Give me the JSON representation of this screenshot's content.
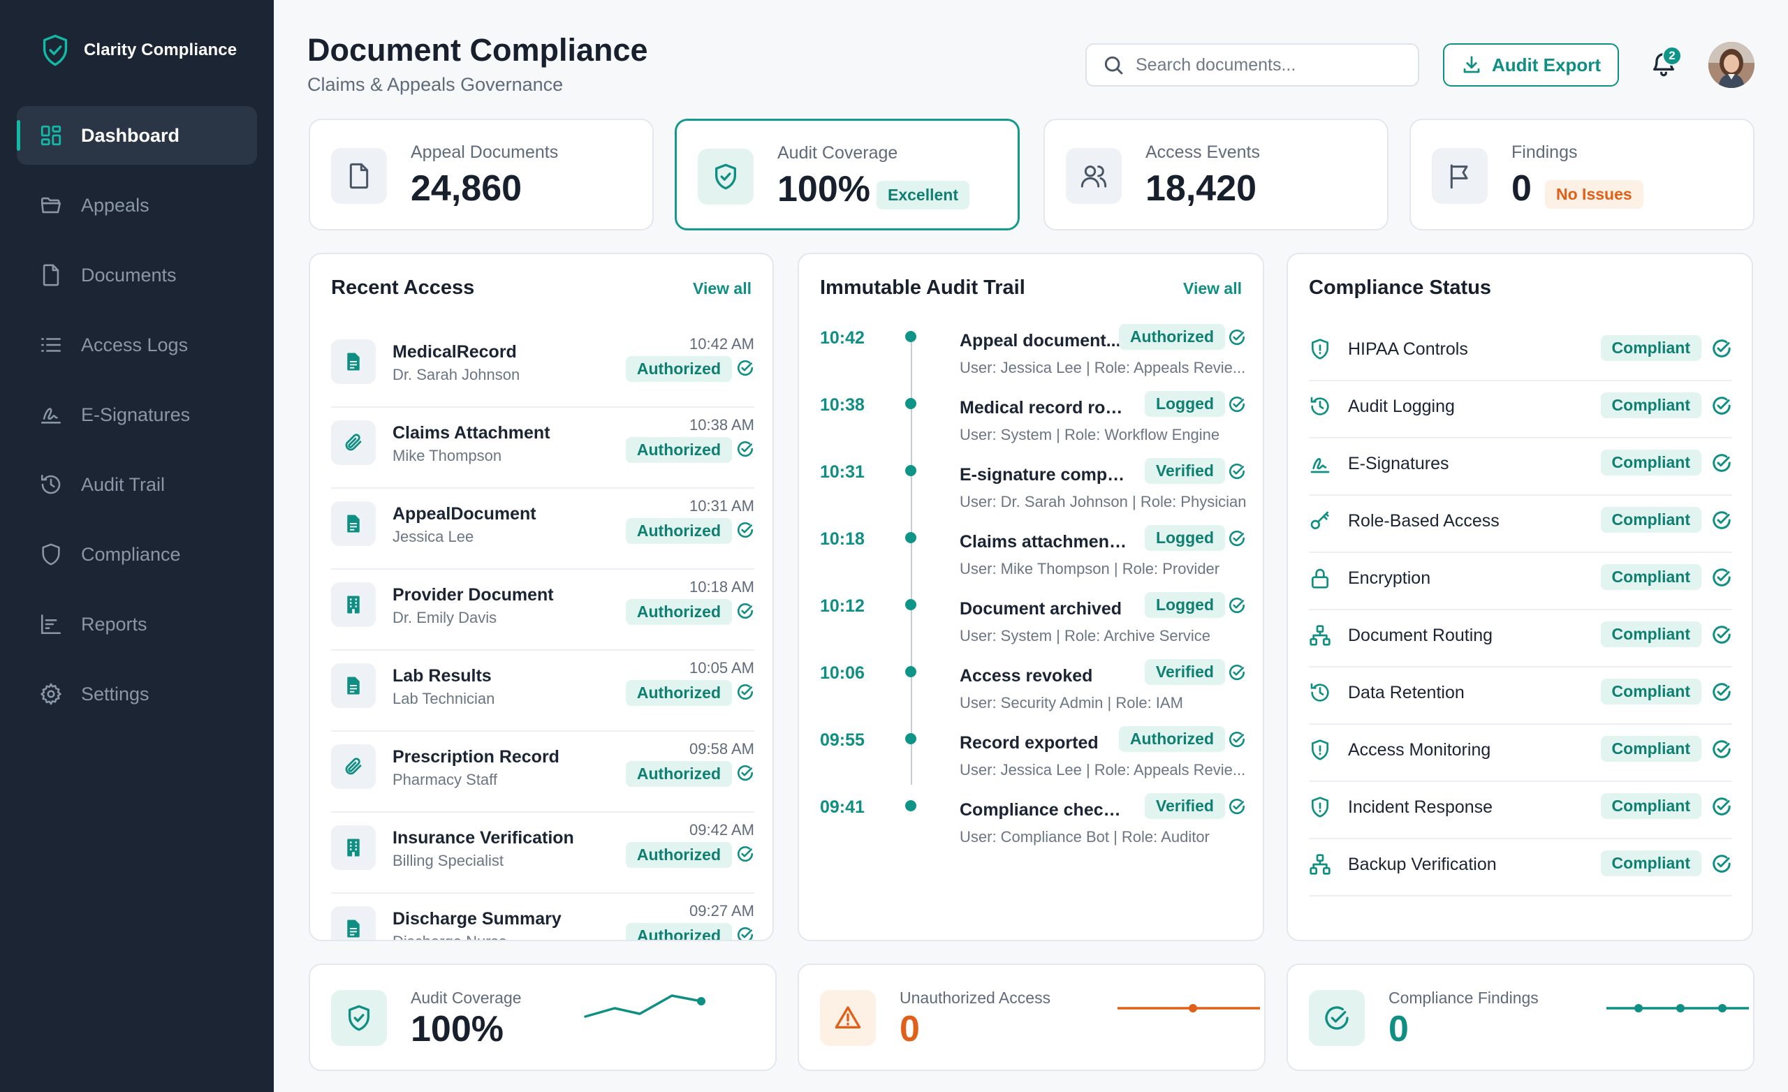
{
  "brand": {
    "name": "Clarity Compliance"
  },
  "sidebar": {
    "items": [
      {
        "label": "Dashboard",
        "icon": "grid-icon",
        "active": true
      },
      {
        "label": "Appeals",
        "icon": "folder-icon"
      },
      {
        "label": "Documents",
        "icon": "document-icon"
      },
      {
        "label": "Access Logs",
        "icon": "list-icon"
      },
      {
        "label": "E-Signatures",
        "icon": "signature-icon"
      },
      {
        "label": "Audit Trail",
        "icon": "history-icon"
      },
      {
        "label": "Compliance",
        "icon": "shield-icon"
      },
      {
        "label": "Reports",
        "icon": "chart-icon"
      },
      {
        "label": "Settings",
        "icon": "gear-icon"
      }
    ]
  },
  "header": {
    "title": "Document Compliance",
    "subtitle": "Claims & Appeals Governance",
    "search_placeholder": "Search documents...",
    "export_label": "Audit Export",
    "notification_count": "2"
  },
  "stats": [
    {
      "label": "Appeal Documents",
      "value": "24,860",
      "badge": "",
      "icon": "document-icon"
    },
    {
      "label": "Audit Coverage",
      "value": "100%",
      "badge": "Excellent",
      "icon": "shield-check-icon"
    },
    {
      "label": "Access Events",
      "value": "18,420",
      "badge": "",
      "icon": "users-icon"
    },
    {
      "label": "Findings",
      "value": "0",
      "badge": "No Issues",
      "icon": "flag-icon"
    }
  ],
  "recent_access": {
    "title": "Recent Access",
    "view_all": "View all",
    "rows": [
      {
        "name": "MedicalRecord",
        "user": "Dr. Sarah Johnson",
        "time": "10:42 AM",
        "status": "Authorized",
        "icon": "file-text-icon"
      },
      {
        "name": "Claims Attachment",
        "user": "Mike Thompson",
        "time": "10:38 AM",
        "status": "Authorized",
        "icon": "paperclip-icon"
      },
      {
        "name": "AppealDocument",
        "user": "Jessica Lee",
        "time": "10:31 AM",
        "status": "Authorized",
        "icon": "file-text-icon"
      },
      {
        "name": "Provider Document",
        "user": "Dr. Emily Davis",
        "time": "10:18 AM",
        "status": "Authorized",
        "icon": "building-icon"
      },
      {
        "name": "Lab Results",
        "user": "Lab Technician",
        "time": "10:05 AM",
        "status": "Authorized",
        "icon": "file-text-icon"
      },
      {
        "name": "Prescription Record",
        "user": "Pharmacy Staff",
        "time": "09:58 AM",
        "status": "Authorized",
        "icon": "paperclip-icon"
      },
      {
        "name": "Insurance Verification",
        "user": "Billing Specialist",
        "time": "09:42 AM",
        "status": "Authorized",
        "icon": "building-icon"
      },
      {
        "name": "Discharge Summary",
        "user": "Discharge Nurse",
        "time": "09:27 AM",
        "status": "Authorized",
        "icon": "file-text-icon"
      }
    ]
  },
  "audit_trail": {
    "title": "Immutable Audit Trail",
    "view_all": "View all",
    "items": [
      {
        "time": "10:42",
        "event": "Appeal document...",
        "status": "Authorized",
        "detail": "User: Jessica Lee | Role: Appeals Revie..."
      },
      {
        "time": "10:38",
        "event": "Medical record routed",
        "status": "Logged",
        "detail": "User: System | Role: Workflow Engine"
      },
      {
        "time": "10:31",
        "event": "E-signature completed",
        "status": "Verified",
        "detail": "User: Dr. Sarah Johnson | Role: Physician"
      },
      {
        "time": "10:18",
        "event": "Claims attachment up...",
        "status": "Logged",
        "detail": "User: Mike Thompson | Role: Provider"
      },
      {
        "time": "10:12",
        "event": "Document archived",
        "status": "Logged",
        "detail": "User: System | Role: Archive Service"
      },
      {
        "time": "10:06",
        "event": "Access revoked",
        "status": "Verified",
        "detail": "User: Security Admin | Role: IAM"
      },
      {
        "time": "09:55",
        "event": "Record exported",
        "status": "Authorized",
        "detail": "User: Jessica Lee | Role: Appeals Revie..."
      },
      {
        "time": "09:41",
        "event": "Compliance check pa...",
        "status": "Verified",
        "detail": "User: Compliance Bot | Role: Auditor"
      }
    ]
  },
  "compliance_status": {
    "title": "Compliance Status",
    "rows": [
      {
        "name": "HIPAA Controls",
        "status": "Compliant",
        "icon": "shield-alert-icon"
      },
      {
        "name": "Audit Logging",
        "status": "Compliant",
        "icon": "history-icon"
      },
      {
        "name": "E-Signatures",
        "status": "Compliant",
        "icon": "signature-icon"
      },
      {
        "name": "Role-Based Access",
        "status": "Compliant",
        "icon": "key-icon"
      },
      {
        "name": "Encryption",
        "status": "Compliant",
        "icon": "lock-icon"
      },
      {
        "name": "Document Routing",
        "status": "Compliant",
        "icon": "network-icon"
      },
      {
        "name": "Data Retention",
        "status": "Compliant",
        "icon": "history-icon"
      },
      {
        "name": "Access Monitoring",
        "status": "Compliant",
        "icon": "shield-alert-icon"
      },
      {
        "name": "Incident Response",
        "status": "Compliant",
        "icon": "shield-alert-icon"
      },
      {
        "name": "Backup Verification",
        "status": "Compliant",
        "icon": "network-icon"
      }
    ]
  },
  "bottom_cards": [
    {
      "label": "Audit Coverage",
      "value": "100%",
      "icon": "shield-check-icon"
    },
    {
      "label": "Unauthorized Access",
      "value": "0",
      "icon": "alert-triangle-icon"
    },
    {
      "label": "Compliance Findings",
      "value": "0",
      "icon": "check-circle-icon"
    }
  ],
  "colors": {
    "accent": "#0f8f83",
    "sidebar": "#1b2533",
    "warning": "#e0601a"
  }
}
